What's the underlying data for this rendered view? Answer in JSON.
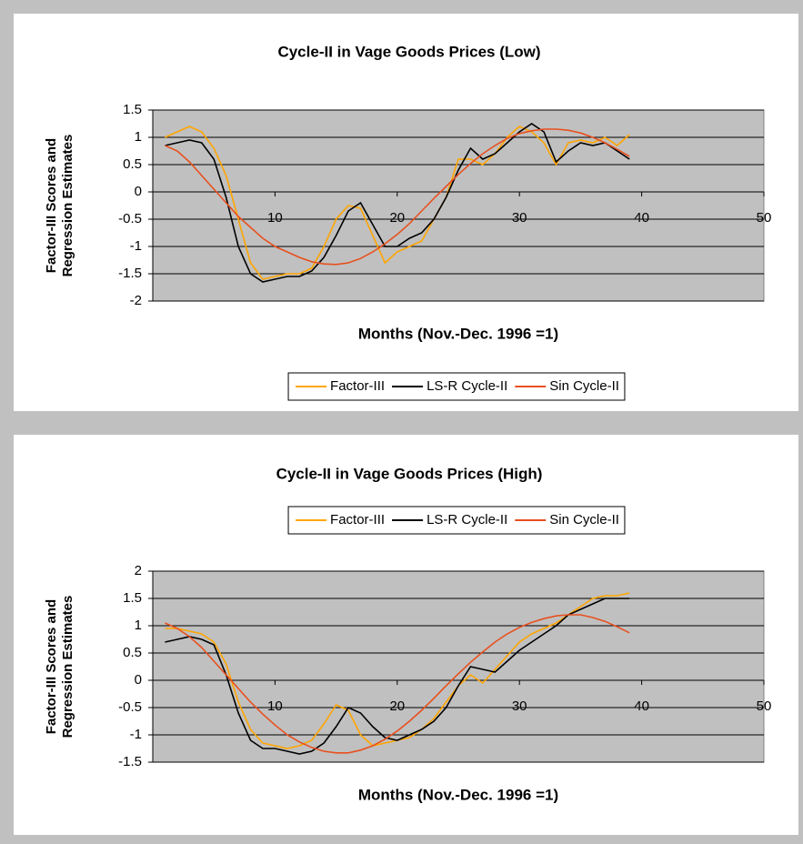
{
  "chart_data": [
    {
      "type": "line",
      "title": "Cycle-II in Vage Goods Prices (Low)",
      "x_label": "Months (Nov.-Dec. 1996 =1)",
      "y_label": "Factor-III Scores and Regression Estimates",
      "x": [
        1,
        2,
        3,
        4,
        5,
        6,
        7,
        8,
        9,
        10,
        11,
        12,
        13,
        14,
        15,
        16,
        17,
        18,
        19,
        20,
        21,
        22,
        23,
        24,
        25,
        26,
        27,
        28,
        29,
        30,
        31,
        32,
        33,
        34,
        35,
        36,
        37,
        38,
        39
      ],
      "series": [
        {
          "name": "Factor-III",
          "color": "#ffa500",
          "values": [
            1.0,
            1.1,
            1.2,
            1.1,
            0.8,
            0.3,
            -0.5,
            -1.3,
            -1.6,
            -1.55,
            -1.5,
            -1.5,
            -1.4,
            -1.0,
            -0.5,
            -0.25,
            -0.3,
            -0.8,
            -1.3,
            -1.1,
            -1.0,
            -0.9,
            -0.5,
            -0.1,
            0.6,
            0.6,
            0.5,
            0.7,
            1.0,
            1.2,
            1.1,
            0.9,
            0.5,
            0.9,
            0.95,
            0.9,
            1.0,
            0.85,
            1.05
          ]
        },
        {
          "name": "LS-R Cycle-II",
          "color": "#000000",
          "values": [
            0.85,
            0.9,
            0.95,
            0.9,
            0.6,
            -0.1,
            -1.0,
            -1.5,
            -1.65,
            -1.6,
            -1.55,
            -1.55,
            -1.45,
            -1.2,
            -0.8,
            -0.35,
            -0.2,
            -0.6,
            -1.0,
            -1.0,
            -0.85,
            -0.75,
            -0.5,
            -0.1,
            0.4,
            0.8,
            0.6,
            0.7,
            0.9,
            1.1,
            1.25,
            1.1,
            0.55,
            0.75,
            0.9,
            0.85,
            0.9,
            0.75,
            0.6
          ]
        },
        {
          "name": "Sin Cycle-II",
          "color": "#e8501e",
          "values": [
            0.85,
            0.75,
            0.55,
            0.3,
            0.05,
            -0.2,
            -0.45,
            -0.65,
            -0.85,
            -1.0,
            -1.1,
            -1.2,
            -1.28,
            -1.32,
            -1.33,
            -1.3,
            -1.22,
            -1.1,
            -0.95,
            -0.78,
            -0.58,
            -0.35,
            -0.12,
            0.1,
            0.32,
            0.52,
            0.7,
            0.85,
            0.98,
            1.07,
            1.12,
            1.15,
            1.15,
            1.13,
            1.08,
            1.0,
            0.9,
            0.78,
            0.65
          ]
        }
      ],
      "xlim": [
        0,
        50
      ],
      "xticks": [
        10,
        20,
        30,
        40,
        50
      ],
      "ylim": [
        -2,
        1.5
      ],
      "yticks": [
        -2,
        -1.5,
        -1,
        -0.5,
        0,
        0.5,
        1,
        1.5
      ],
      "grid": true,
      "legend": "bottom"
    },
    {
      "type": "line",
      "title": "Cycle-II in Vage Goods Prices (High)",
      "x_label": "Months (Nov.-Dec. 1996 =1)",
      "y_label": "Factor-III Scores and Regression Estimates",
      "x": [
        1,
        2,
        3,
        4,
        5,
        6,
        7,
        8,
        9,
        10,
        11,
        12,
        13,
        14,
        15,
        16,
        17,
        18,
        19,
        20,
        21,
        22,
        23,
        24,
        25,
        26,
        27,
        28,
        29,
        30,
        31,
        32,
        33,
        34,
        35,
        36,
        37,
        38,
        39
      ],
      "series": [
        {
          "name": "Factor-III",
          "color": "#ffa500",
          "values": [
            0.95,
            0.95,
            0.9,
            0.85,
            0.7,
            0.3,
            -0.4,
            -0.9,
            -1.15,
            -1.2,
            -1.25,
            -1.2,
            -1.1,
            -0.8,
            -0.45,
            -0.55,
            -1.0,
            -1.2,
            -1.15,
            -1.1,
            -1.05,
            -0.9,
            -0.7,
            -0.4,
            -0.1,
            0.1,
            -0.05,
            0.2,
            0.45,
            0.7,
            0.85,
            0.95,
            1.05,
            1.2,
            1.35,
            1.5,
            1.55,
            1.55,
            1.6
          ]
        },
        {
          "name": "LS-R Cycle-II",
          "color": "#000000",
          "values": [
            0.7,
            0.75,
            0.8,
            0.75,
            0.65,
            0.1,
            -0.6,
            -1.1,
            -1.25,
            -1.25,
            -1.3,
            -1.35,
            -1.3,
            -1.15,
            -0.85,
            -0.5,
            -0.6,
            -0.85,
            -1.05,
            -1.1,
            -1.0,
            -0.9,
            -0.75,
            -0.5,
            -0.1,
            0.25,
            0.2,
            0.15,
            0.35,
            0.55,
            0.7,
            0.85,
            1.0,
            1.2,
            1.3,
            1.4,
            1.5,
            1.5,
            1.5
          ]
        },
        {
          "name": "Sin Cycle-II",
          "color": "#e8501e",
          "values": [
            1.05,
            0.95,
            0.8,
            0.6,
            0.35,
            0.1,
            -0.15,
            -0.4,
            -0.62,
            -0.82,
            -1.0,
            -1.13,
            -1.23,
            -1.3,
            -1.33,
            -1.33,
            -1.28,
            -1.2,
            -1.08,
            -0.93,
            -0.75,
            -0.55,
            -0.33,
            -0.1,
            0.12,
            0.33,
            0.52,
            0.7,
            0.85,
            0.97,
            1.06,
            1.13,
            1.18,
            1.2,
            1.2,
            1.15,
            1.08,
            0.98,
            0.87
          ]
        }
      ],
      "xlim": [
        0,
        50
      ],
      "xticks": [
        10,
        20,
        30,
        40,
        50
      ],
      "ylim": [
        -1.5,
        2
      ],
      "yticks": [
        -1.5,
        -1,
        -0.5,
        0,
        0.5,
        1,
        1.5,
        2
      ],
      "grid": true,
      "legend": "top"
    }
  ]
}
